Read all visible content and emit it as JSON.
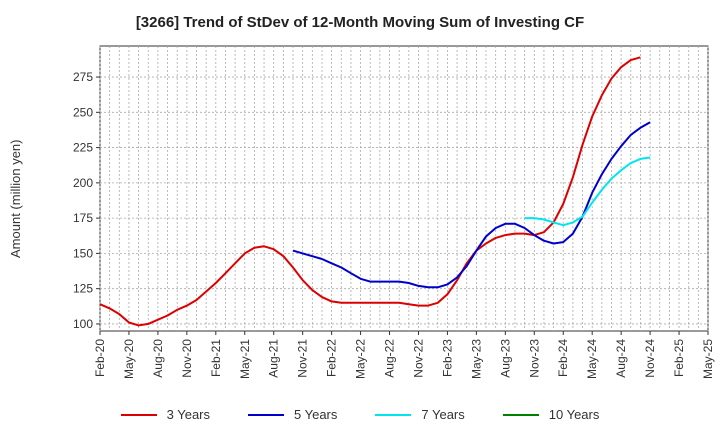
{
  "chart_data": {
    "type": "line",
    "title": "[3266]  Trend of StDev of 12-Month Moving Sum of Investing CF",
    "ylabel": "Amount (million yen)",
    "xlabel": "",
    "ylim": [
      95,
      297
    ],
    "yticks": [
      100,
      125,
      150,
      175,
      200,
      225,
      250,
      275
    ],
    "x_tick_labels": [
      "Feb-20",
      "May-20",
      "Aug-20",
      "Nov-20",
      "Feb-21",
      "May-21",
      "Aug-21",
      "Nov-21",
      "Feb-22",
      "May-22",
      "Aug-22",
      "Nov-22",
      "Feb-23",
      "May-23",
      "Aug-23",
      "Nov-23",
      "Feb-24",
      "May-24",
      "Aug-24",
      "Nov-24",
      "Feb-25",
      "May-25"
    ],
    "grid": true,
    "legend_position": "bottom",
    "series": [
      {
        "name": "3 Years",
        "color": "#dd0000",
        "start_month": "Feb-20",
        "values": [
          114,
          111,
          107,
          101,
          99,
          100,
          103,
          106,
          110,
          113,
          117,
          123,
          129,
          136,
          143,
          150,
          154,
          155,
          153,
          148,
          140,
          131,
          124,
          119,
          116,
          115,
          115,
          115,
          115,
          115,
          115,
          115,
          114,
          113,
          113,
          115,
          121,
          131,
          143,
          152,
          157,
          161,
          163,
          164,
          164,
          163,
          165,
          172,
          185,
          204,
          227,
          247,
          262,
          274,
          282,
          287,
          289
        ]
      },
      {
        "name": "5 Years",
        "color": "#0000cc",
        "start_month": "Oct-21",
        "values": [
          152,
          150,
          148,
          146,
          143,
          140,
          136,
          132,
          130,
          130,
          130,
          130,
          129,
          127,
          126,
          126,
          128,
          133,
          141,
          152,
          162,
          168,
          171,
          171,
          168,
          163,
          159,
          157,
          158,
          164,
          176,
          193,
          206,
          217,
          226,
          234,
          239,
          243
        ]
      },
      {
        "name": "7 Years",
        "color": "#00e5ee",
        "start_month": "Oct-23",
        "values": [
          175,
          175,
          174,
          172,
          170,
          172,
          176,
          186,
          195,
          203,
          209,
          214,
          217,
          218
        ]
      },
      {
        "name": "10 Years",
        "color": "#008000",
        "start_month": "",
        "values": []
      }
    ]
  }
}
